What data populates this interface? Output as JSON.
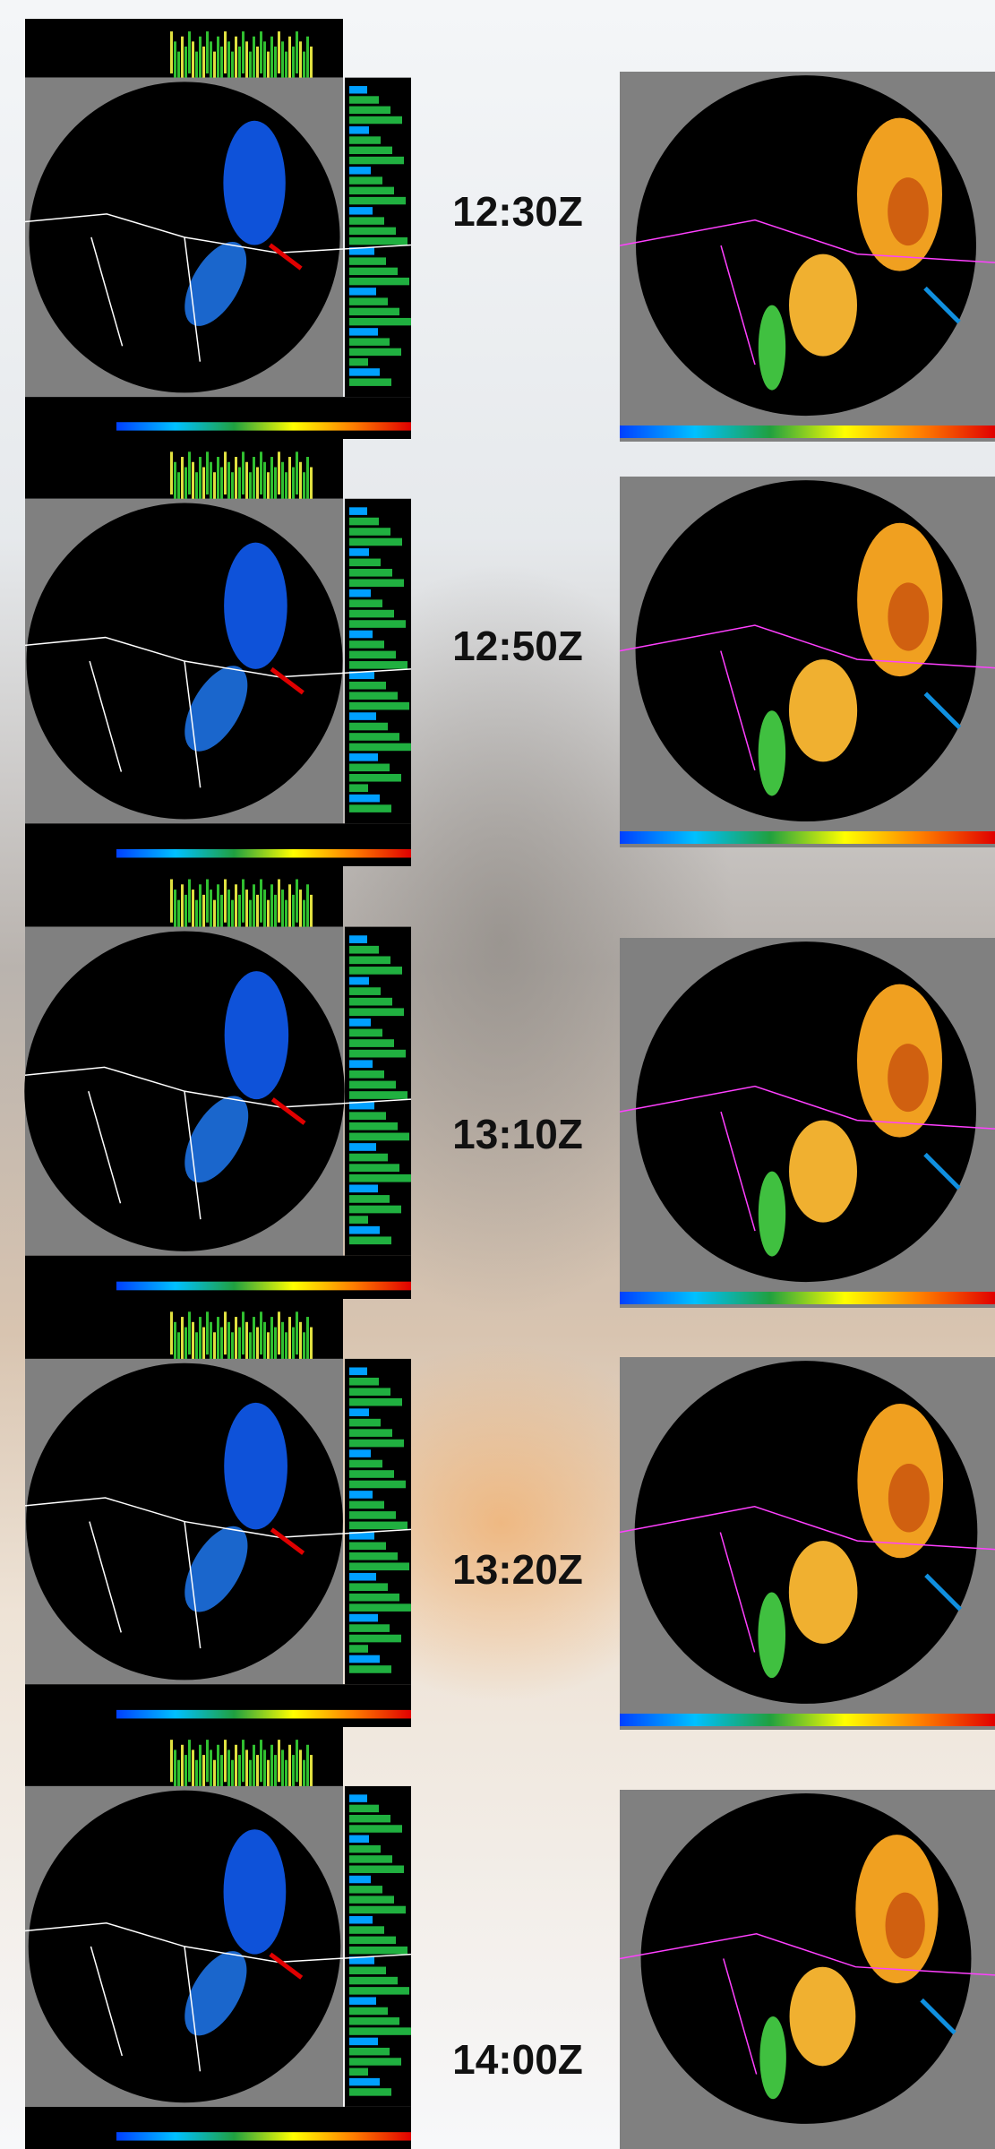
{
  "time_labels": [
    "12:30Z",
    "12:50Z",
    "13:10Z",
    "13:20Z",
    "14:00Z"
  ]
}
